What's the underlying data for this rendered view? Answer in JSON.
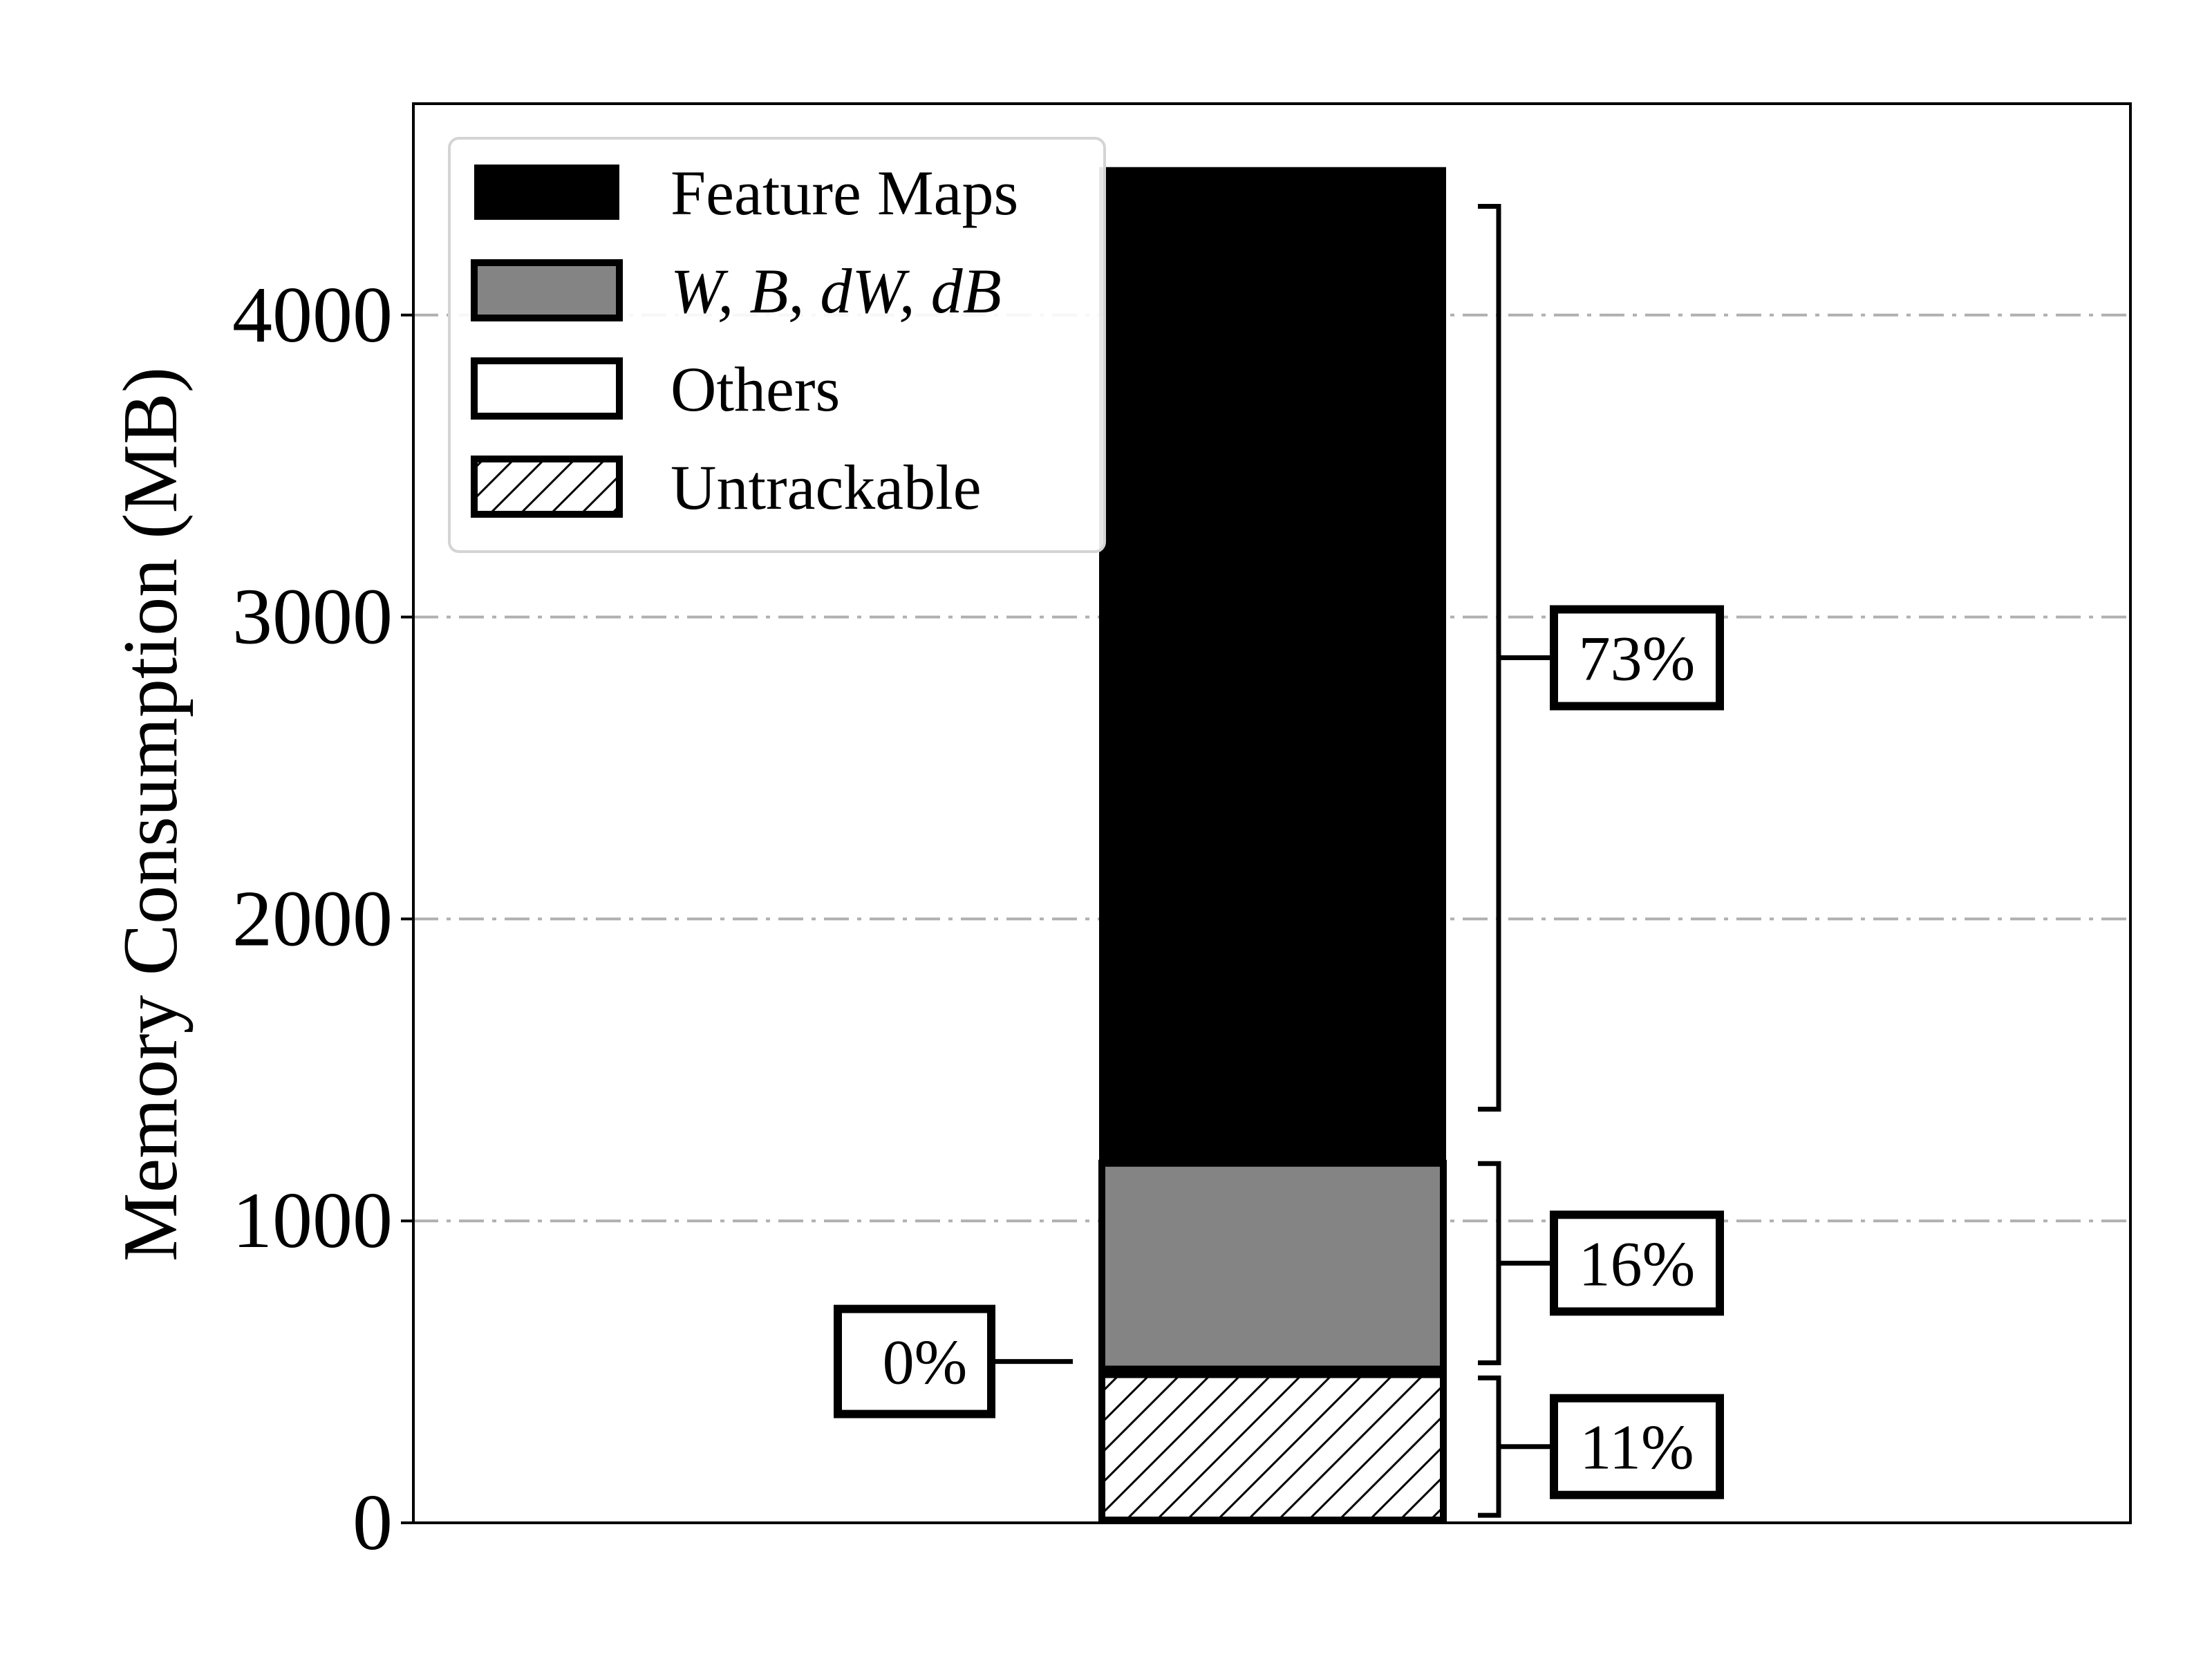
{
  "chart_data": {
    "type": "bar",
    "stacked": true,
    "categories": [
      ""
    ],
    "ylabel": "Memory Consumption (MB)",
    "xlabel": "",
    "ylim": [
      0,
      4700
    ],
    "yticks": [
      0,
      1000,
      2000,
      3000,
      4000
    ],
    "grid": "y",
    "legend_position": "top-left",
    "series": [
      {
        "name": "Untrackable",
        "values": [
          500
        ],
        "fill": "hatch",
        "color": "#ffffff"
      },
      {
        "name": "Others",
        "values": [
          0
        ],
        "fill": "solid",
        "color": "#ffffff"
      },
      {
        "name": "W, B, dW, dB",
        "values": [
          700
        ],
        "fill": "solid",
        "color": "#848484"
      },
      {
        "name": "Feature Maps",
        "values": [
          3290
        ],
        "fill": "solid",
        "color": "#000000"
      }
    ],
    "legend": [
      {
        "label": "Feature Maps",
        "series": "Feature Maps"
      },
      {
        "label": "W, B, dW, dB",
        "series": "W, B, dW, dB"
      },
      {
        "label": "Others",
        "series": "Others"
      },
      {
        "label": "Untrackable",
        "series": "Untrackable"
      }
    ],
    "annotations": [
      {
        "label": "73%",
        "series": "Feature Maps",
        "range": [
          1370,
          4360
        ],
        "side": "right"
      },
      {
        "label": "16%",
        "series": "W, B, dW, dB",
        "range": [
          530,
          1190
        ],
        "side": "right"
      },
      {
        "label": "11%",
        "series": "Untrackable",
        "range": [
          25,
          480
        ],
        "side": "right"
      },
      {
        "label": "0%",
        "series": "Others",
        "at": 500,
        "side": "left"
      }
    ]
  }
}
